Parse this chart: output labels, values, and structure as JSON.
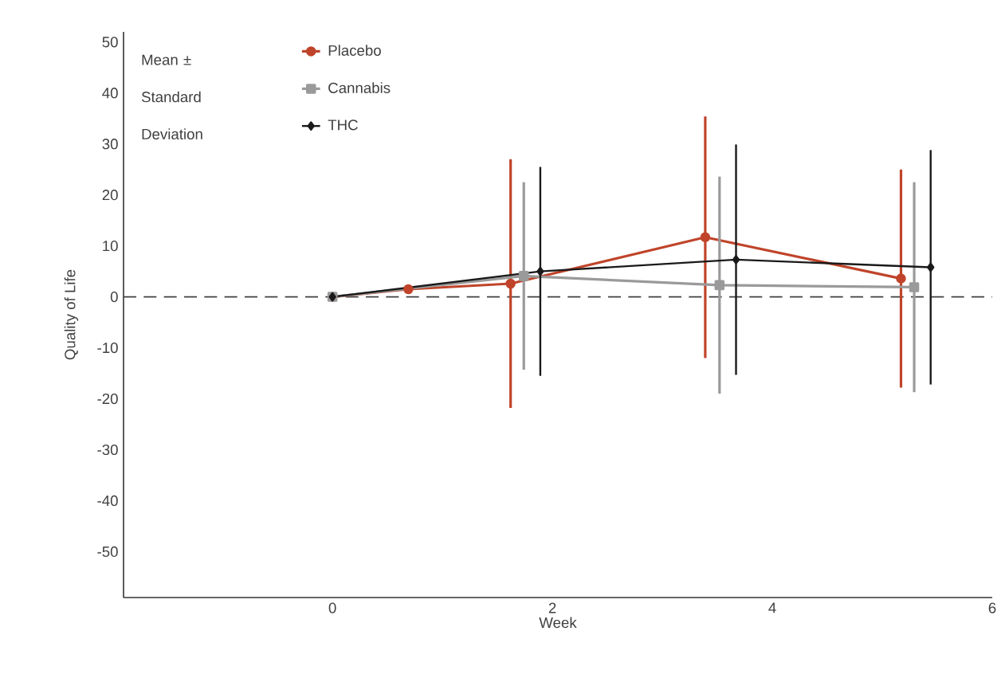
{
  "chart_data": {
    "type": "line",
    "xlabel": "Week",
    "ylabel": "Quality of Life",
    "legend_title": "Mean ± Standard Deviation",
    "legend": "top left",
    "xlim": [
      -1.9,
      6
    ],
    "ylim": [
      -59,
      52
    ],
    "xticks": [
      0,
      2,
      4,
      6
    ],
    "yticks": [
      -50,
      -40,
      -30,
      -20,
      -10,
      0,
      10,
      20,
      30,
      40,
      50
    ],
    "ref_lines": [
      {
        "axis": "y",
        "value": 0,
        "color": "#404040",
        "line_style": "dashed"
      }
    ],
    "series": [
      {
        "name": "Placebo",
        "color": "#c0442a",
        "marker": "circle",
        "x": [
          0,
          0.69,
          1.62,
          3.39,
          5.17
        ],
        "values": [
          0,
          1.5,
          2.6,
          11.7,
          3.6
        ],
        "errors": [
          null,
          null,
          24.4,
          23.7,
          21.4
        ]
      },
      {
        "name": "Cannabis",
        "color": "#9a9a9a",
        "marker": "square",
        "x": [
          0,
          1.74,
          3.52,
          5.29
        ],
        "values": [
          0,
          4.1,
          2.3,
          1.9
        ],
        "errors": [
          null,
          18.4,
          21.3,
          20.6
        ]
      },
      {
        "name": "THC",
        "color": "#1a1a1a",
        "marker": "diamond",
        "x": [
          0,
          1.89,
          3.67,
          5.44
        ],
        "values": [
          0,
          5.0,
          7.3,
          5.8
        ],
        "errors": [
          null,
          20.5,
          22.6,
          23
        ]
      }
    ]
  }
}
